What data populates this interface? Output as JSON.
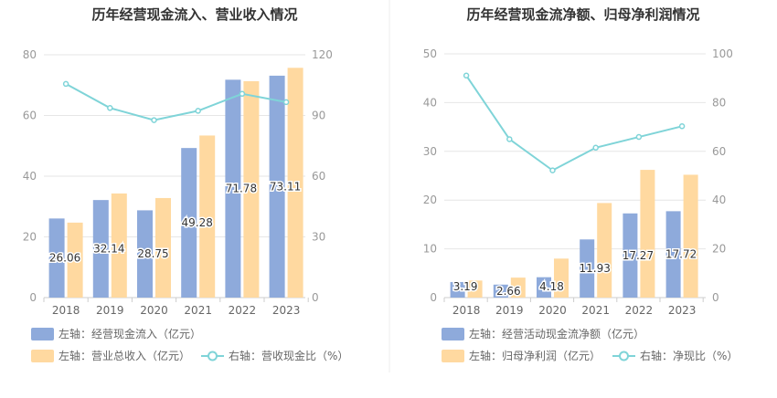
{
  "chart_data": [
    {
      "type": "bar+line",
      "title": "历年经营现金流入、营业收入情况",
      "categories": [
        "2018",
        "2019",
        "2020",
        "2021",
        "2022",
        "2023"
      ],
      "left_axis": {
        "ticks": [
          "0",
          "20",
          "40",
          "60",
          "80"
        ],
        "min": 0,
        "max": 80
      },
      "right_axis": {
        "ticks": [
          "0",
          "30",
          "60",
          "90",
          "120"
        ],
        "min": 0,
        "max": 120
      },
      "series": [
        {
          "name": "左轴：经营现金流入（亿元）",
          "type": "bar",
          "axis": "left",
          "color": "#8eaadb",
          "values": [
            26.06,
            32.14,
            28.75,
            49.28,
            71.78,
            73.11
          ],
          "labels": [
            "26.06",
            "32.14",
            "28.75",
            "49.28",
            "71.78",
            "73.11"
          ]
        },
        {
          "name": "左轴：营业总收入（亿元）",
          "type": "bar",
          "axis": "left",
          "color": "#ffd9a0",
          "values": [
            24.7,
            34.3,
            32.8,
            53.4,
            71.3,
            75.7
          ]
        },
        {
          "name": "右轴：营收现金比（%）",
          "type": "line",
          "axis": "right",
          "color": "#7fd4d8",
          "values": [
            105.6,
            93.7,
            87.7,
            92.3,
            100.7,
            96.6
          ]
        }
      ]
    },
    {
      "type": "bar+line",
      "title": "历年经营现金流净额、归母净利润情况",
      "categories": [
        "2018",
        "2019",
        "2020",
        "2021",
        "2022",
        "2023"
      ],
      "left_axis": {
        "ticks": [
          "0",
          "10",
          "20",
          "30",
          "40",
          "50"
        ],
        "min": 0,
        "max": 50
      },
      "right_axis": {
        "ticks": [
          "0",
          "20",
          "40",
          "60",
          "80",
          "100"
        ],
        "min": 0,
        "max": 100
      },
      "series": [
        {
          "name": "左轴：经营活动现金流净额（亿元）",
          "type": "bar",
          "axis": "left",
          "color": "#8eaadb",
          "values": [
            3.19,
            2.66,
            4.18,
            11.93,
            17.27,
            17.72
          ],
          "labels": [
            "3.19",
            "2.66",
            "4.18",
            "11.93",
            "17.27",
            "17.72"
          ]
        },
        {
          "name": "左轴：归母净利润（亿元）",
          "type": "bar",
          "axis": "left",
          "color": "#ffd9a0",
          "values": [
            3.5,
            4.1,
            8.0,
            19.4,
            26.2,
            25.2
          ]
        },
        {
          "name": "右轴：净现比（%）",
          "type": "line",
          "axis": "right",
          "color": "#7fd4d8",
          "values": [
            91.1,
            65.0,
            52.2,
            61.5,
            65.9,
            70.3
          ]
        }
      ]
    }
  ]
}
